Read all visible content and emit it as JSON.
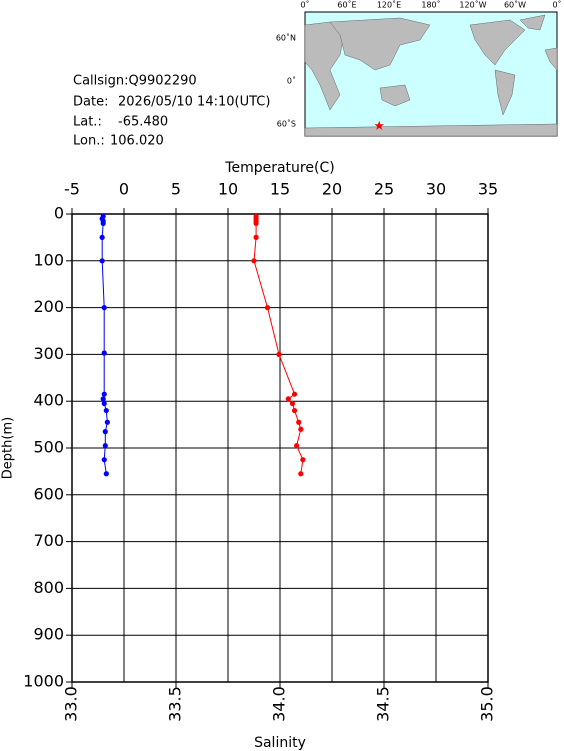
{
  "info": {
    "callsign": "Callsign:Q9902290",
    "date_label": "Date:",
    "date": "2026/05/10 14:10(UTC)",
    "lat_label": "Lat.:",
    "lat": "-65.480",
    "lon_label": "Lon.:",
    "lon": "106.020"
  },
  "map": {
    "lon_labels": [
      "0˚",
      "60˚E",
      "120˚E",
      "180˚",
      "120˚W",
      "60˚W",
      "0˚"
    ],
    "lat_labels": [
      "60˚N",
      "0˚",
      "60˚S"
    ]
  },
  "chart_data": {
    "type": "profile",
    "x_label": "Temperature(C)",
    "x2_label": "Salinity",
    "y_label": "Depth(m)",
    "xlim": [
      -5,
      35
    ],
    "xticks": [
      -5,
      0,
      5,
      10,
      15,
      20,
      25,
      30,
      35
    ],
    "x2lim": [
      33,
      35
    ],
    "x2ticks": [
      {
        "value": 33,
        "label": "33.0"
      },
      {
        "value": 33.5,
        "label": "33.5"
      },
      {
        "value": 34,
        "label": "34.0"
      },
      {
        "value": 34.5,
        "label": "34.5"
      },
      {
        "value": 35,
        "label": "35.0"
      }
    ],
    "ylim": [
      0,
      1000
    ],
    "yticks": [
      0,
      100,
      200,
      300,
      400,
      500,
      600,
      700,
      800,
      900,
      1000
    ],
    "grid": true,
    "series": [
      {
        "color": "#0000ff",
        "axis": "x",
        "depth": [
          5,
          10,
          15,
          20,
          50,
          100,
          200,
          297,
          385,
          395,
          405,
          420,
          445,
          465,
          495,
          525,
          555
        ],
        "values": [
          -2.0,
          -2.1,
          -2.0,
          -2.0,
          -2.1,
          -2.1,
          -1.9,
          -1.9,
          -1.9,
          -2.0,
          -1.9,
          -1.7,
          -1.6,
          -1.8,
          -1.8,
          -1.9,
          -1.7
        ]
      },
      {
        "color": "#ff0000",
        "axis": "x2",
        "depth": [
          5,
          10,
          15,
          20,
          50,
          100,
          200,
          300,
          385,
          395,
          405,
          420,
          445,
          460,
          495,
          525,
          555
        ],
        "values": [
          33.885,
          33.885,
          33.885,
          33.885,
          33.885,
          33.875,
          33.94,
          33.995,
          34.07,
          34.04,
          34.06,
          34.07,
          34.09,
          34.1,
          34.08,
          34.11,
          34.1
        ]
      }
    ]
  }
}
